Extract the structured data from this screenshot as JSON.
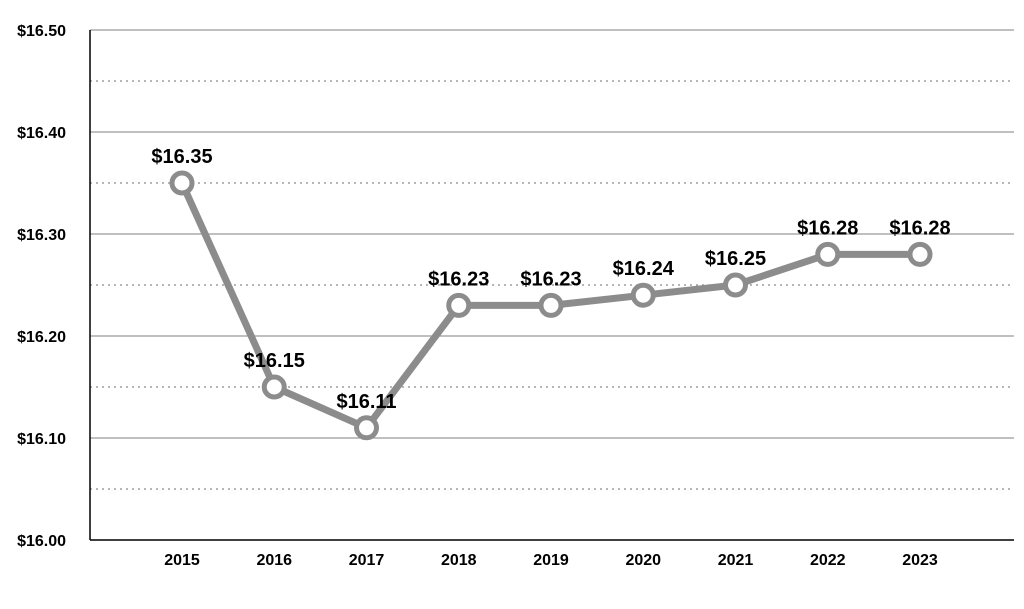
{
  "chart_data": {
    "type": "line",
    "title": "",
    "xlabel": "",
    "ylabel": "",
    "categories": [
      "2015",
      "2016",
      "2017",
      "2018",
      "2019",
      "2020",
      "2021",
      "2022",
      "2023"
    ],
    "series": [
      {
        "values": [
          16.35,
          16.15,
          16.11,
          16.23,
          16.23,
          16.24,
          16.25,
          16.28,
          16.28
        ],
        "labels": [
          "$16.35",
          "$16.15",
          "$16.11",
          "$16.23",
          "$16.23",
          "$16.24",
          "$16.25",
          "$16.28",
          "$16.28"
        ],
        "color": "#8c8c8c"
      }
    ],
    "ylim": [
      16.0,
      16.5
    ],
    "yticks": [
      16.0,
      16.1,
      16.2,
      16.3,
      16.4,
      16.5
    ],
    "ytick_labels": [
      "$16.00",
      "$16.10",
      "$16.20",
      "$16.30",
      "$16.40",
      "$16.50"
    ],
    "grid": true,
    "legend": "none"
  }
}
